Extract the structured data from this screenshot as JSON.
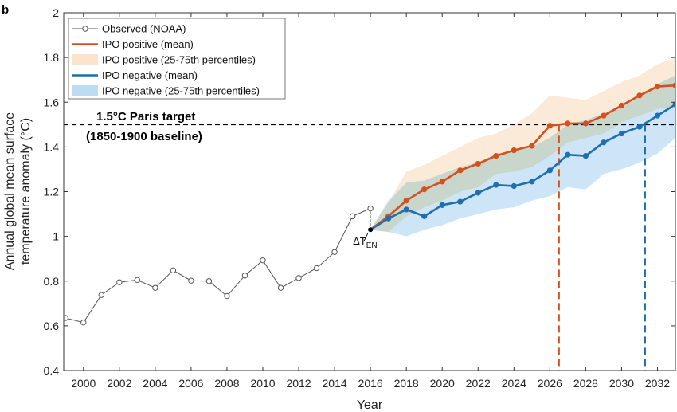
{
  "panel_label": "b",
  "chart_data": {
    "type": "line",
    "xlabel": "Year",
    "ylabel": "Annual global mean surface temperature anomaly (°C)",
    "ylabel_lines": [
      "Annual global mean surface",
      "temperature anomaly (°C)"
    ],
    "xlim": [
      1998.9,
      2033
    ],
    "ylim": [
      0.4,
      2.0
    ],
    "x_ticks": [
      2000,
      2002,
      2004,
      2006,
      2008,
      2010,
      2012,
      2014,
      2016,
      2018,
      2020,
      2022,
      2024,
      2026,
      2028,
      2030,
      2032
    ],
    "y_ticks": [
      0.4,
      0.6,
      0.8,
      1.0,
      1.2,
      1.4,
      1.6,
      1.8,
      2.0
    ],
    "y_tick_labels": [
      "0.4",
      "0.6",
      "0.8",
      "1",
      "1.2",
      "1.4",
      "1.6",
      "1.8",
      "2"
    ],
    "grid": false,
    "legend_position": "top-left",
    "colors": {
      "observed": "#555555",
      "positive": "#d4501e",
      "positive_band": "#fbe3cc",
      "negative": "#1f6fb0",
      "negative_band": "#bcdcf3",
      "overlap": "#c8d4c4",
      "target_line": "#000000"
    },
    "series": [
      {
        "name": "Observed (NOAA)",
        "x": [
          1999,
          2000,
          2001,
          2002,
          2003,
          2004,
          2005,
          2006,
          2007,
          2008,
          2009,
          2010,
          2011,
          2012,
          2013,
          2014,
          2015,
          2016
        ],
        "y": [
          0.635,
          0.615,
          0.738,
          0.795,
          0.805,
          0.77,
          0.848,
          0.802,
          0.8,
          0.733,
          0.825,
          0.893,
          0.77,
          0.814,
          0.858,
          0.93,
          1.09,
          1.125
        ]
      },
      {
        "name": "IPO positive (mean)",
        "x": [
          2016,
          2017,
          2018,
          2019,
          2020,
          2021,
          2022,
          2023,
          2024,
          2025,
          2026,
          2027,
          2028,
          2029,
          2030,
          2031,
          2032,
          2033
        ],
        "y": [
          1.03,
          1.09,
          1.16,
          1.21,
          1.245,
          1.295,
          1.325,
          1.36,
          1.385,
          1.405,
          1.495,
          1.505,
          1.505,
          1.54,
          1.585,
          1.63,
          1.67,
          1.675
        ]
      },
      {
        "name": "IPO negative (mean)",
        "x": [
          2016,
          2017,
          2018,
          2019,
          2020,
          2021,
          2022,
          2023,
          2024,
          2025,
          2026,
          2027,
          2028,
          2029,
          2030,
          2031,
          2032,
          2033
        ],
        "y": [
          1.03,
          1.08,
          1.12,
          1.09,
          1.14,
          1.155,
          1.195,
          1.23,
          1.225,
          1.245,
          1.295,
          1.365,
          1.36,
          1.42,
          1.46,
          1.49,
          1.54,
          1.59
        ]
      }
    ],
    "bands": [
      {
        "name": "IPO positive (25-75th percentiles)",
        "x": [
          2016,
          2017,
          2018,
          2019,
          2020,
          2021,
          2022,
          2023,
          2024,
          2025,
          2026,
          2027,
          2028,
          2029,
          2030,
          2031,
          2032,
          2033
        ],
        "low": [
          1.03,
          1.02,
          1.09,
          1.13,
          1.16,
          1.2,
          1.22,
          1.28,
          1.29,
          1.31,
          1.36,
          1.42,
          1.44,
          1.46,
          1.51,
          1.54,
          1.57,
          1.58
        ],
        "high": [
          1.03,
          1.15,
          1.29,
          1.32,
          1.36,
          1.4,
          1.44,
          1.46,
          1.5,
          1.55,
          1.63,
          1.62,
          1.61,
          1.65,
          1.69,
          1.72,
          1.77,
          1.8
        ]
      },
      {
        "name": "IPO negative (25-75th percentiles)",
        "x": [
          2016,
          2017,
          2018,
          2019,
          2020,
          2021,
          2022,
          2023,
          2024,
          2025,
          2026,
          2027,
          2028,
          2029,
          2030,
          2031,
          2032,
          2033
        ],
        "low": [
          1.03,
          1.02,
          1.0,
          1.03,
          1.05,
          1.08,
          1.1,
          1.12,
          1.13,
          1.16,
          1.18,
          1.22,
          1.21,
          1.28,
          1.3,
          1.33,
          1.37,
          1.44
        ],
        "high": [
          1.03,
          1.16,
          1.24,
          1.25,
          1.28,
          1.31,
          1.33,
          1.37,
          1.38,
          1.4,
          1.44,
          1.5,
          1.52,
          1.55,
          1.59,
          1.63,
          1.68,
          1.72
        ]
      }
    ],
    "reference_line": {
      "y": 1.5,
      "label_line1": "1.5°C Paris target",
      "label_line2": "(1850-1900 baseline)"
    },
    "crossings": [
      {
        "series": "IPO positive (mean)",
        "x": 2026.5,
        "y": 1.5
      },
      {
        "series": "IPO negative (mean)",
        "x": 2031.3,
        "y": 1.5
      }
    ],
    "annotation": {
      "point_x": 2016,
      "point_y": 1.03,
      "label": "ΔT",
      "subscript": "EN"
    }
  }
}
